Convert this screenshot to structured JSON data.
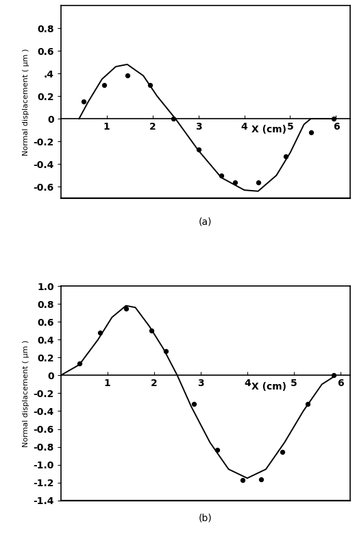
{
  "chart_data": [
    {
      "type": "line",
      "title": "(a)",
      "x_label": "X (cm)",
      "y_label": "Normal displacement ( μm )",
      "xlim": [
        0,
        6.3
      ],
      "ylim": [
        -0.7,
        1.0
      ],
      "xticks": [
        1,
        2,
        3,
        4,
        5,
        6
      ],
      "yticks": [
        -0.6,
        -0.4,
        -0.2,
        0,
        0.2,
        {
          "value": 0.4,
          "label": ".4"
        },
        0.6,
        0.8
      ],
      "grid": false,
      "series": [
        {
          "type": "line",
          "color": "#000000",
          "line_style": "solid",
          "x": [
            0.4,
            0.6,
            0.9,
            1.2,
            1.45,
            1.8,
            2.1,
            2.5,
            3.0,
            3.5,
            4.0,
            4.3,
            4.7,
            5.0,
            5.3,
            5.45,
            5.9
          ],
          "values": [
            0,
            0.15,
            0.35,
            0.46,
            0.48,
            0.38,
            0.2,
            0,
            -0.28,
            -0.52,
            -0.63,
            -0.64,
            -0.5,
            -0.3,
            -0.05,
            0,
            0
          ]
        },
        {
          "type": "scatter",
          "color": "#000000",
          "marker": "o",
          "x": [
            0.5,
            0.95,
            1.45,
            1.95,
            2.45,
            3.0,
            3.5,
            3.8,
            4.3,
            4.9,
            5.45,
            5.95
          ],
          "values": [
            0.15,
            0.3,
            0.38,
            0.3,
            0,
            -0.27,
            -0.5,
            -0.56,
            -0.56,
            -0.33,
            -0.12,
            0
          ]
        }
      ]
    },
    {
      "type": "line",
      "title": "(b)",
      "x_label": "X (cm)",
      "y_label": "Normal displacement ( μm )",
      "xlim": [
        0,
        6.2
      ],
      "ylim": [
        -1.4,
        1.0
      ],
      "xticks": [
        1,
        2,
        3,
        4,
        5,
        6
      ],
      "yticks": [
        -1.4,
        -1.2,
        -1.0,
        -0.8,
        -0.6,
        -0.4,
        -0.2,
        0,
        0.2,
        0.4,
        0.6,
        0.8,
        1.0
      ],
      "grid": false,
      "series": [
        {
          "type": "line",
          "color": "#000000",
          "line_style": "solid",
          "x": [
            0,
            0.4,
            0.8,
            1.1,
            1.4,
            1.6,
            1.9,
            2.2,
            2.5,
            2.8,
            3.2,
            3.6,
            4.0,
            4.4,
            4.8,
            5.2,
            5.6,
            5.9
          ],
          "values": [
            0,
            0.12,
            0.4,
            0.65,
            0.78,
            0.76,
            0.55,
            0.3,
            0,
            -0.35,
            -0.75,
            -1.05,
            -1.15,
            -1.05,
            -0.75,
            -0.4,
            -0.1,
            0
          ]
        },
        {
          "type": "scatter",
          "color": "#000000",
          "marker": "o",
          "x": [
            0.4,
            0.85,
            1.4,
            1.95,
            2.25,
            2.85,
            3.35,
            3.9,
            4.3,
            4.75,
            5.3,
            5.85
          ],
          "values": [
            0.13,
            0.48,
            0.75,
            0.5,
            0.27,
            -0.32,
            -0.83,
            -1.17,
            -1.16,
            -0.86,
            -0.32,
            0
          ]
        }
      ]
    }
  ]
}
